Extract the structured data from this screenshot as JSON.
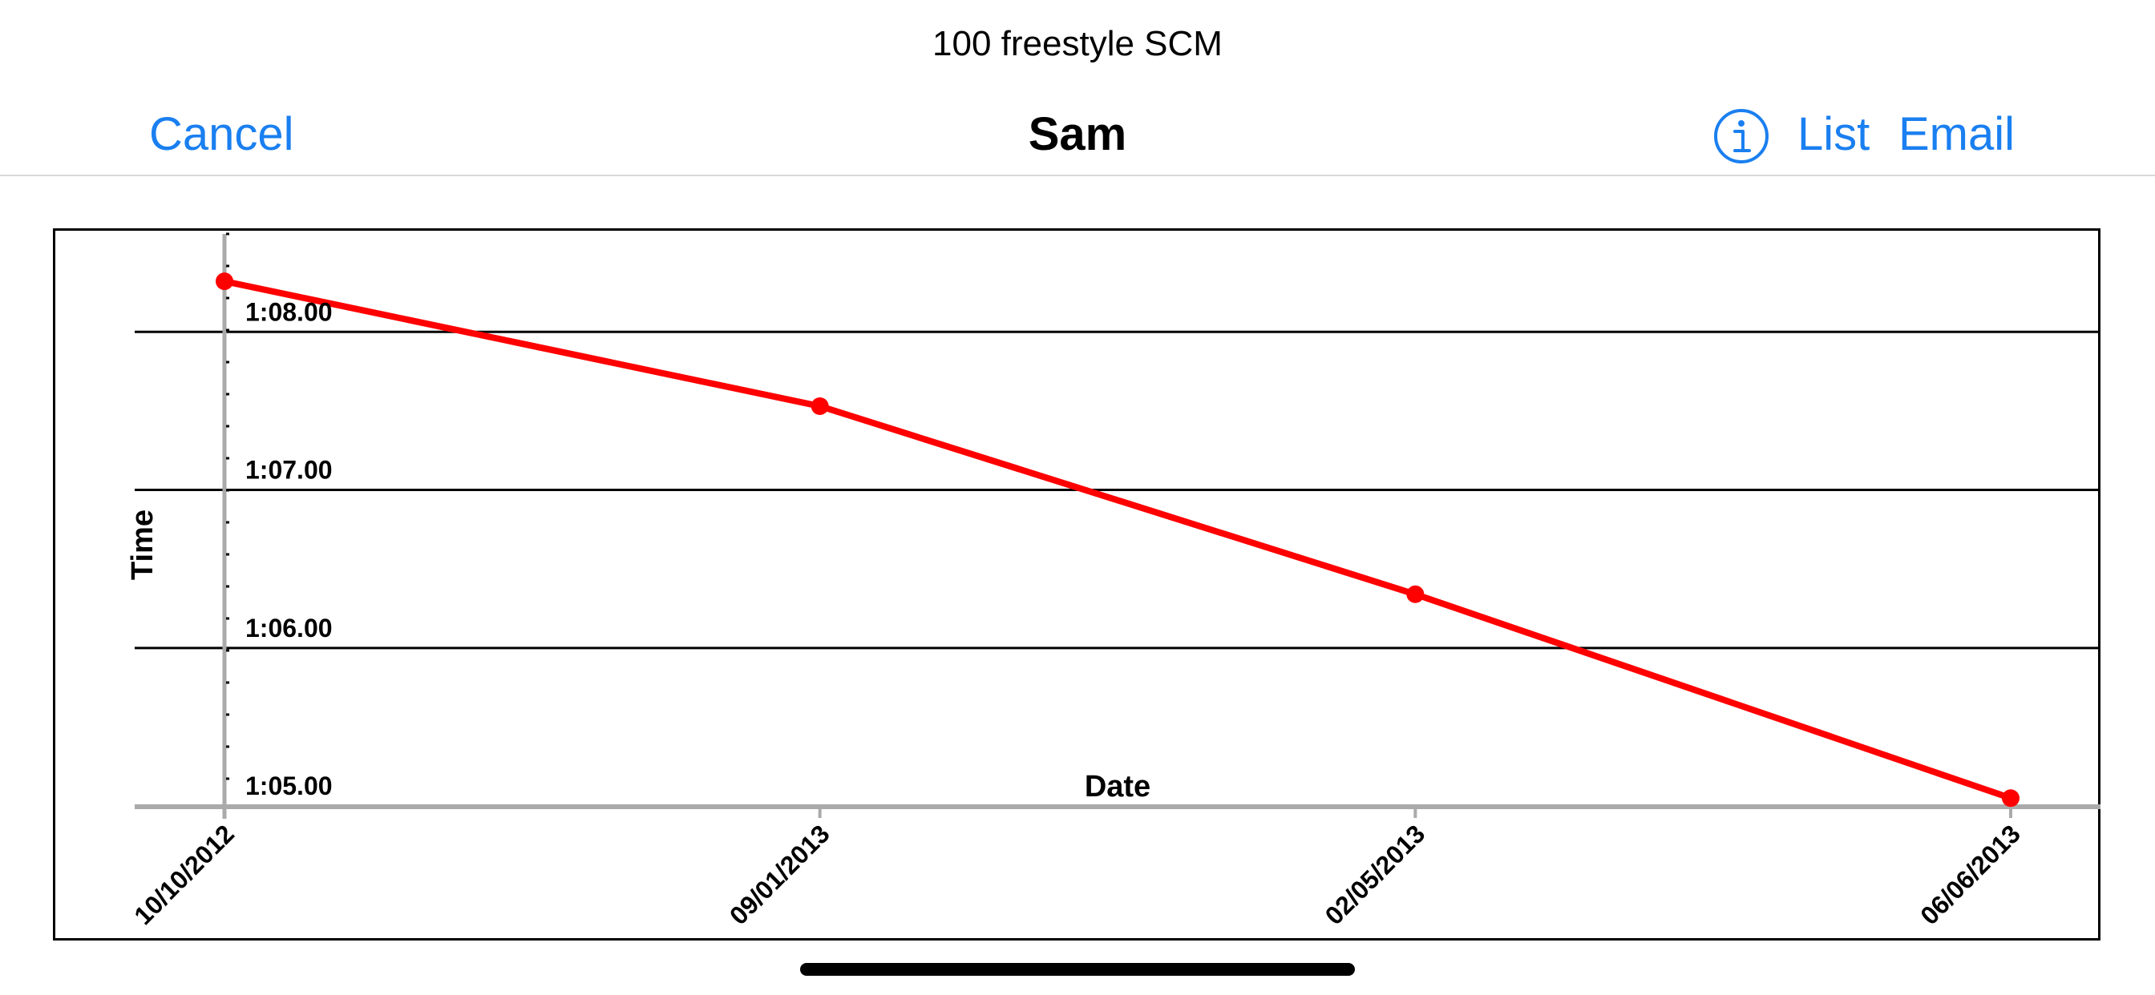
{
  "prompt": "100 freestyle SCM",
  "navbar": {
    "cancel_label": "Cancel",
    "title": "Sam",
    "list_label": "List",
    "email_label": "Email",
    "info_icon": "info-icon"
  },
  "colors": {
    "accent": "#1a7ff0",
    "series": "#ff0000",
    "axis": "#aaaaaa",
    "grid": "#000000"
  },
  "chart_data": {
    "type": "line",
    "title": "",
    "xlabel": "Date",
    "ylabel": "Time",
    "x": [
      "10/10/2012",
      "09/01/2013",
      "02/05/2013",
      "06/06/2013"
    ],
    "series": [
      {
        "values": [
          68.32,
          67.53,
          66.34,
          65.05
        ]
      }
    ],
    "y_ticks": [
      65.0,
      66.0,
      67.0,
      68.0
    ],
    "y_tick_labels": [
      "1:05.00",
      "1:06.00",
      "1:07.00",
      "1:08.00"
    ],
    "ylim": [
      64.95,
      68.64
    ],
    "grid": true
  }
}
